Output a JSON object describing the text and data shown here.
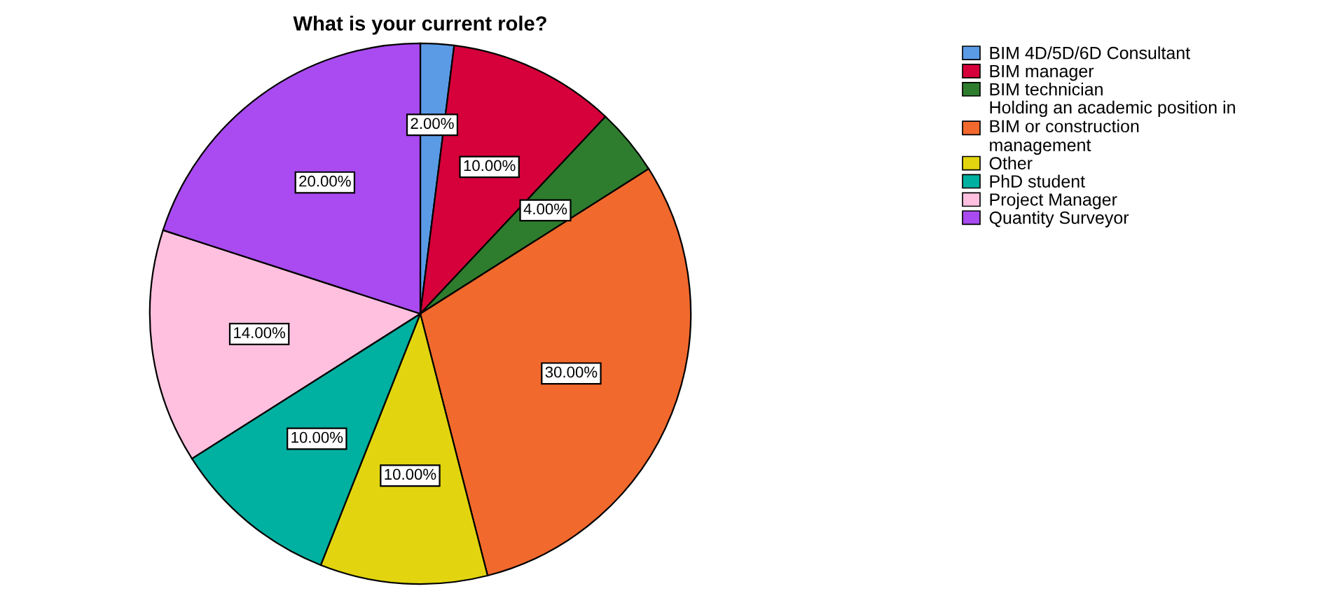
{
  "chart_data": {
    "type": "pie",
    "title": "What is your current role?",
    "categories": [
      "BIM 4D/5D/6D Consultant",
      "BIM manager",
      "BIM technician",
      "Holding an academic position in\nBIM or construction\nmanagement",
      "Other",
      "PhD student",
      "Project Manager",
      "Quantity Surveyor"
    ],
    "values": [
      2,
      10,
      4,
      30,
      10,
      10,
      14,
      20
    ],
    "value_labels": [
      "2.00%",
      "10.00%",
      "4.00%",
      "30.00%",
      "10.00%",
      "10.00%",
      "14.00%",
      "20.00%"
    ],
    "colors": [
      "#5b9be6",
      "#d6003a",
      "#2e7d2e",
      "#f2692d",
      "#e2d510",
      "#00b0a0",
      "#ffc0df",
      "#a94bf0"
    ],
    "legend": "top right"
  }
}
